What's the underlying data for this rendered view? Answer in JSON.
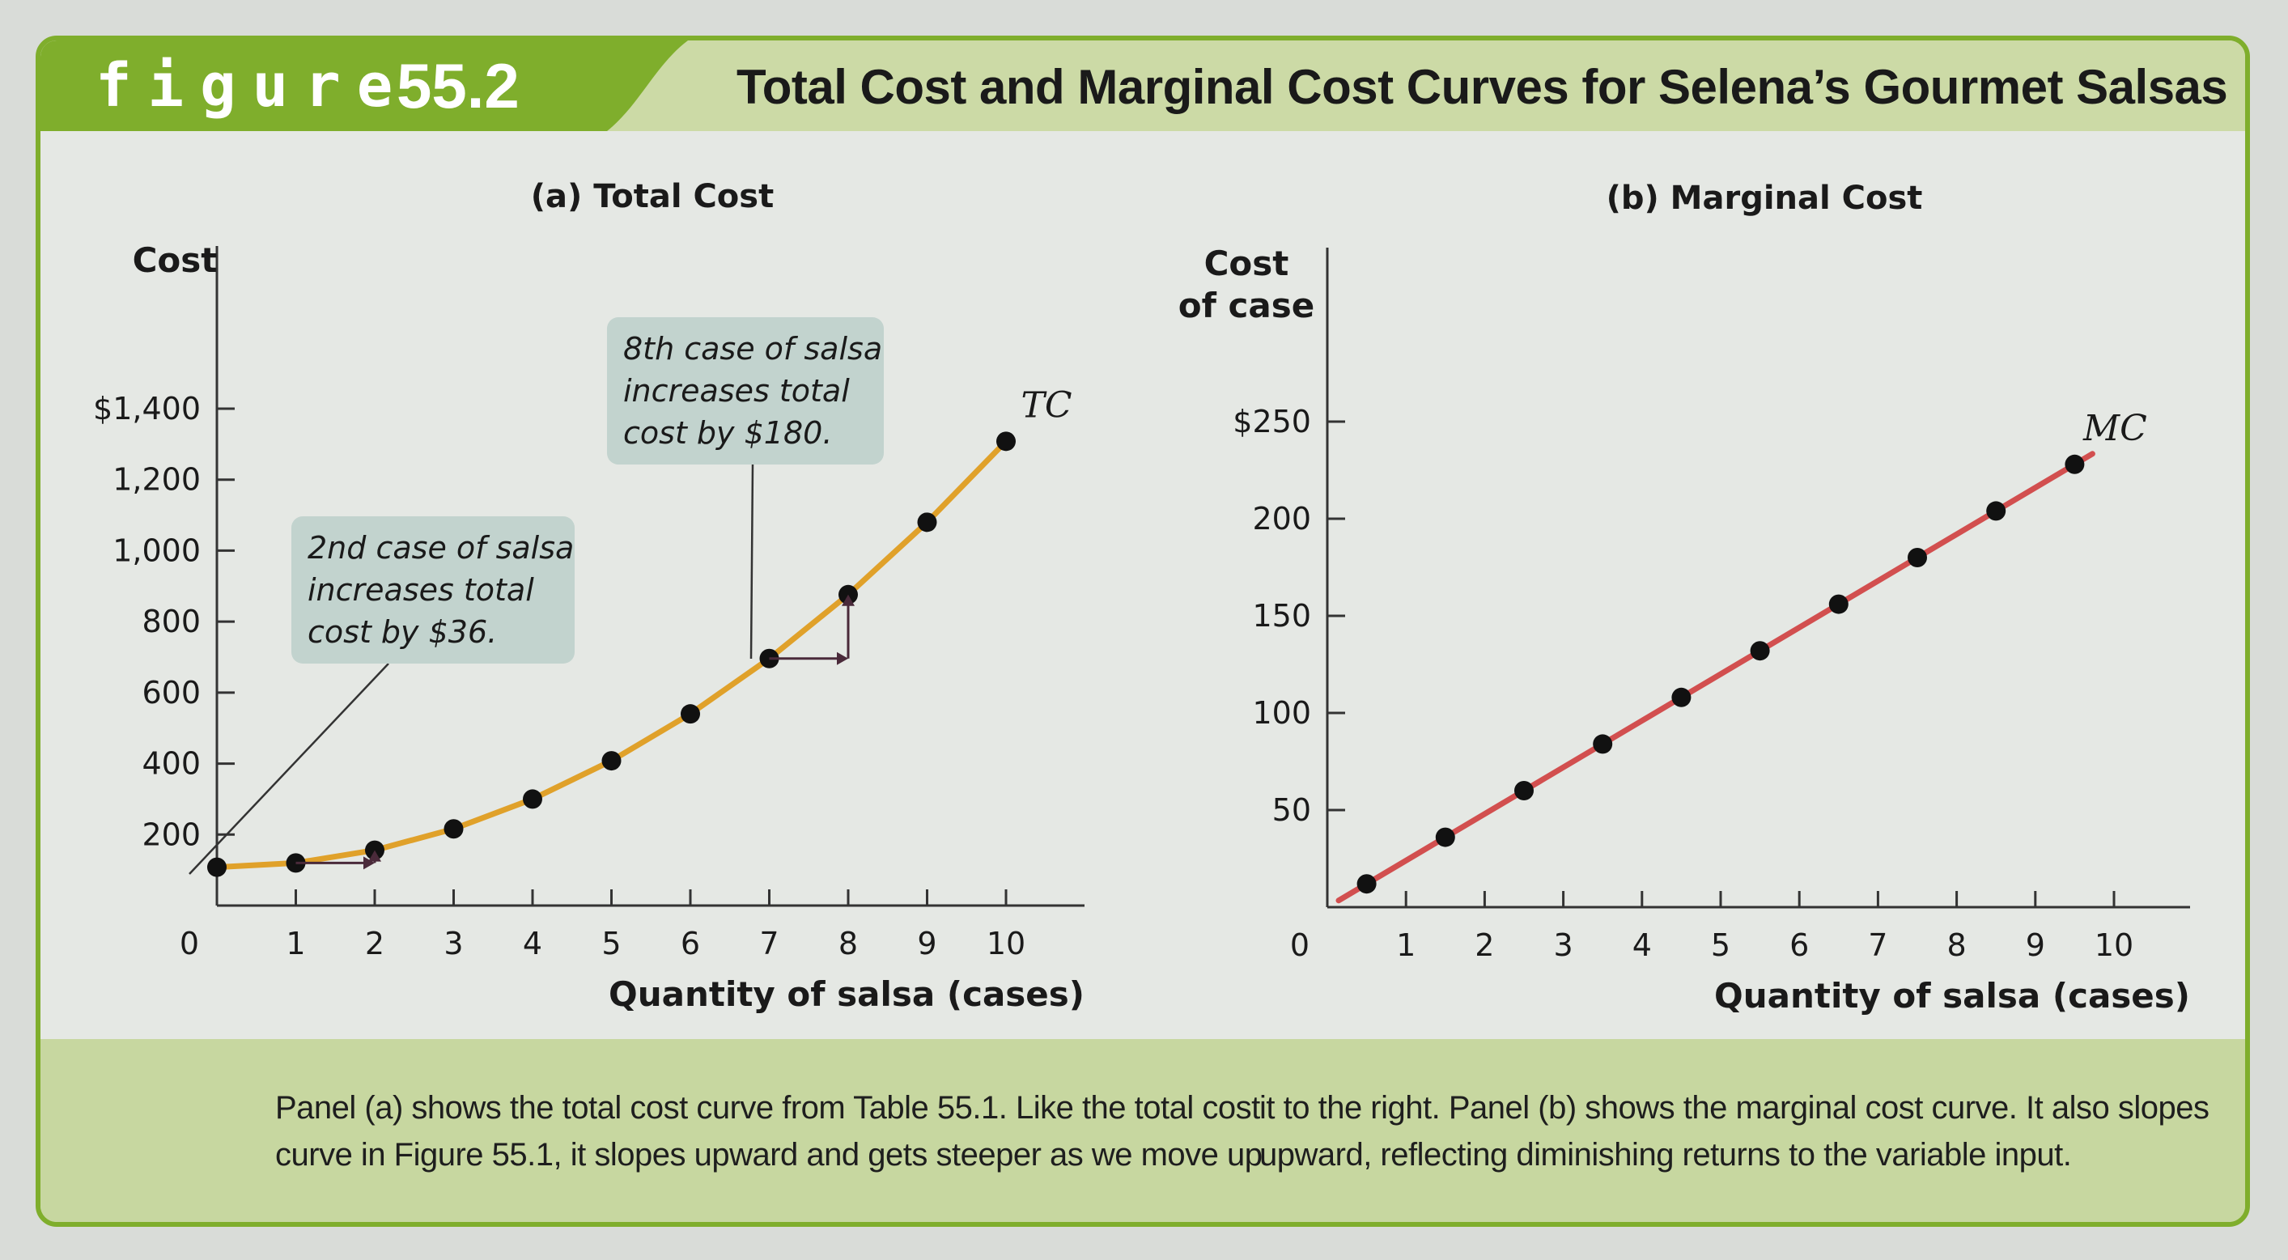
{
  "header": {
    "figure_label": "figure",
    "figure_number": "55.2",
    "title": "Total Cost and Marginal Cost Curves for Selena’s Gourmet Salsas"
  },
  "caption": {
    "left": "Panel (a) shows the total cost curve from Table 55.1. Like the total cost curve in Figure 55.1, it slopes upward and gets steeper as we move up",
    "right": "it to the right. Panel (b) shows the marginal cost curve. It also slopes upward, reflecting diminishing returns to the variable input."
  },
  "colors": {
    "tc_curve": "#e0a12a",
    "mc_curve": "#d24f4f",
    "tab_green": "#7fae2c",
    "annotation_box": "#c2d3ce"
  },
  "chart_data": [
    {
      "type": "line",
      "panel_title": "(a) Total Cost",
      "xlabel": "Quantity of salsa (cases)",
      "ylabel": "Cost",
      "x_ticks": [
        1,
        2,
        3,
        4,
        5,
        6,
        7,
        8,
        9,
        10
      ],
      "x_origin_label": "0",
      "y_ticks": [
        {
          "value": 200,
          "label": "200"
        },
        {
          "value": 400,
          "label": "400"
        },
        {
          "value": 600,
          "label": "600"
        },
        {
          "value": 800,
          "label": "800"
        },
        {
          "value": 1000,
          "label": "1,000"
        },
        {
          "value": 1200,
          "label": "1,200"
        },
        {
          "value": 1400,
          "label": "$1,400"
        }
      ],
      "xlim": [
        0,
        11
      ],
      "ylim": [
        0,
        1800
      ],
      "series": [
        {
          "name": "TC",
          "x": [
            0,
            1,
            2,
            3,
            4,
            5,
            6,
            7,
            8,
            9,
            10
          ],
          "values": [
            108,
            120,
            156,
            216,
            300,
            408,
            540,
            696,
            876,
            1080,
            1308
          ]
        }
      ],
      "annotations": [
        {
          "lines": [
            "2nd case of salsa",
            "increases total",
            "cost by $36."
          ],
          "from_x": 1,
          "to_x": 2
        },
        {
          "lines": [
            "8th case of salsa",
            "increases total",
            "cost by $180."
          ],
          "from_x": 7,
          "to_x": 8
        }
      ]
    },
    {
      "type": "line",
      "panel_title": "(b) Marginal Cost",
      "xlabel": "Quantity of salsa (cases)",
      "ylabel_lines": [
        "Cost",
        "of case"
      ],
      "x_ticks": [
        1,
        2,
        3,
        4,
        5,
        6,
        7,
        8,
        9,
        10
      ],
      "x_origin_label": "0",
      "y_ticks": [
        {
          "value": 50,
          "label": "50"
        },
        {
          "value": 100,
          "label": "100"
        },
        {
          "value": 150,
          "label": "150"
        },
        {
          "value": 200,
          "label": "200"
        },
        {
          "value": 250,
          "label": "$250"
        }
      ],
      "xlim": [
        0,
        11
      ],
      "ylim": [
        0,
        340
      ],
      "series": [
        {
          "name": "MC",
          "x": [
            0.5,
            1.5,
            2.5,
            3.5,
            4.5,
            5.5,
            6.5,
            7.5,
            8.5,
            9.5
          ],
          "values": [
            12,
            36,
            60,
            84,
            108,
            132,
            156,
            180,
            204,
            228
          ]
        }
      ]
    }
  ]
}
